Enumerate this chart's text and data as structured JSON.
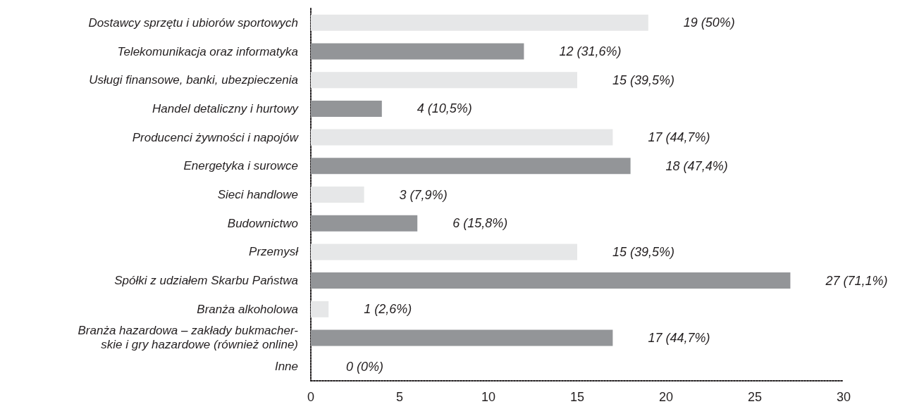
{
  "chart_data": {
    "type": "bar",
    "orientation": "horizontal",
    "categories": [
      "Dostawcy sprzętu i ubiorów sportowych",
      "Telekomunikacja oraz informatyka",
      "Usługi finansowe, banki, ubezpieczenia",
      "Handel detaliczny i hurtowy",
      "Producenci żywności i napojów",
      "Energetyka i surowce",
      "Sieci handlowe",
      "Budownictwo",
      "Przemysł",
      "Spółki z udziałem Skarbu Państwa",
      "Branża alkoholowa",
      "Branża hazardowa – zakłady bukmacher-\nskie i gry hazardowe (również online)",
      "Inne"
    ],
    "values": [
      19,
      12,
      15,
      4,
      17,
      18,
      3,
      6,
      15,
      27,
      1,
      17,
      0
    ],
    "colors": [
      "#e6e7e8",
      "#939598",
      "#e6e7e8",
      "#939598",
      "#e6e7e8",
      "#939598",
      "#e6e7e8",
      "#939598",
      "#e6e7e8",
      "#939598",
      "#e6e7e8",
      "#939598",
      "#e6e7e8"
    ],
    "value_labels": [
      "19 (50%)",
      "12 (31,6%)",
      "15 (39,5%)",
      "4 (10,5%)",
      "17 (44,7%)",
      "18 (47,4%)",
      "3 (7,9%)",
      "6 (15,8%)",
      "15 (39,5%)",
      "27 (71,1%)",
      "1 (2,6%)",
      "17 (44,7%)",
      "0 (0%)"
    ],
    "xlim": [
      0,
      30
    ],
    "xticks": [
      0,
      5,
      10,
      15,
      20,
      25,
      30
    ],
    "grid": false
  }
}
